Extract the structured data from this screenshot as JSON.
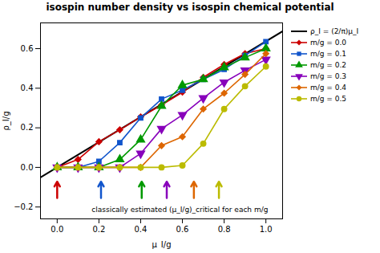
{
  "chart_data": {
    "type": "line",
    "title": "isospin number density vs isospin chemical potential",
    "x_label": "μ_I/g",
    "y_label": "ρ_I/g",
    "xlim": [
      -0.08,
      1.08
    ],
    "ylim": [
      -0.26,
      0.73
    ],
    "xticks": [
      {
        "value": 0.0,
        "label": "0.0"
      },
      0.2,
      0.4,
      0.6,
      0.8,
      {
        "value": 1.0,
        "label": "1.0"
      }
    ],
    "yticks": [
      {
        "value": -0.2,
        "label": "−0.2"
      },
      {
        "value": 0.0,
        "label": "0.0"
      },
      0.2,
      0.4,
      0.6
    ],
    "grid": false,
    "series": [
      {
        "name": "ρ_I = (2/π)μ_I",
        "type": "line",
        "color": "black",
        "x": [
          -0.08,
          1.08
        ],
        "values": [
          -0.050928,
          0.687528
        ]
      },
      {
        "name": "m/g = 0.0",
        "type": "line",
        "color": "#cc0000",
        "marker": "diamond",
        "x": [
          0.0,
          0.1,
          0.2,
          0.3,
          0.4,
          0.5,
          0.6,
          0.7,
          0.8,
          0.9,
          1.0
        ],
        "values": [
          0.0,
          0.04,
          0.13,
          0.19,
          0.255,
          0.315,
          0.38,
          0.455,
          0.52,
          0.575,
          0.6
        ],
        "yerr": [
          0.005,
          0.008,
          0.009,
          0.009,
          0.009,
          0.009,
          0.009,
          0.009,
          0.009,
          0.009,
          0.01
        ]
      },
      {
        "name": "m/g = 0.1",
        "type": "line",
        "color": "#1155cc",
        "marker": "square",
        "x": [
          0.0,
          0.1,
          0.2,
          0.3,
          0.4,
          0.5,
          0.6,
          0.7,
          0.8,
          0.9,
          1.0
        ],
        "values": [
          0.0,
          0.0,
          0.03,
          0.125,
          0.25,
          0.345,
          0.39,
          0.445,
          0.495,
          0.565,
          0.635
        ],
        "yerr": [
          0.005,
          0.005,
          0.007,
          0.009,
          0.009,
          0.009,
          0.009,
          0.009,
          0.009,
          0.009,
          0.01
        ]
      },
      {
        "name": "m/g = 0.2",
        "type": "line",
        "color": "#009900",
        "marker": "triangle-up",
        "x": [
          0.0,
          0.1,
          0.2,
          0.3,
          0.4,
          0.5,
          0.6,
          0.7,
          0.8,
          0.9,
          1.0
        ],
        "values": [
          0.0,
          0.0,
          0.0,
          0.04,
          0.14,
          0.31,
          0.415,
          0.445,
          0.505,
          0.555,
          0.6
        ],
        "yerr": [
          0.005,
          0.005,
          0.005,
          0.007,
          0.009,
          0.009,
          0.009,
          0.009,
          0.009,
          0.009,
          0.01
        ]
      },
      {
        "name": "m/g = 0.3",
        "type": "line",
        "color": "#8800bb",
        "marker": "triangle-down",
        "x": [
          0.0,
          0.1,
          0.2,
          0.3,
          0.4,
          0.5,
          0.6,
          0.7,
          0.8,
          0.9,
          1.0
        ],
        "values": [
          0.0,
          0.0,
          0.0,
          0.0,
          0.07,
          0.195,
          0.265,
          0.35,
          0.43,
          0.49,
          0.545
        ],
        "yerr": [
          0.005,
          0.005,
          0.005,
          0.005,
          0.009,
          0.009,
          0.011,
          0.011,
          0.011,
          0.011,
          0.013
        ]
      },
      {
        "name": "m/g = 0.4",
        "type": "line",
        "color": "#dd6600",
        "marker": "diamond",
        "x": [
          0.0,
          0.1,
          0.2,
          0.3,
          0.4,
          0.5,
          0.6,
          0.7,
          0.8,
          0.9,
          1.0
        ],
        "values": [
          0.0,
          0.0,
          0.0,
          0.0,
          0.0,
          0.11,
          0.155,
          0.295,
          0.375,
          0.47,
          0.575
        ],
        "yerr": [
          0.005,
          0.005,
          0.005,
          0.005,
          0.005,
          0.009,
          0.009,
          0.011,
          0.011,
          0.011,
          0.013
        ]
      },
      {
        "name": "m/g = 0.5",
        "type": "line",
        "color": "#bbbb00",
        "marker": "circle",
        "x": [
          0.0,
          0.1,
          0.2,
          0.3,
          0.4,
          0.5,
          0.6,
          0.7,
          0.8,
          0.9,
          1.0
        ],
        "values": [
          0.0,
          0.0,
          0.0,
          0.0,
          0.0,
          0.0,
          0.01,
          0.12,
          0.295,
          0.41,
          0.51
        ],
        "yerr": [
          0.005,
          0.005,
          0.005,
          0.005,
          0.005,
          0.005,
          0.005,
          0.009,
          0.011,
          0.011,
          0.013
        ]
      }
    ],
    "arrows": [
      {
        "x": 0.0,
        "y_start": -0.155,
        "y_end": -0.072,
        "color": "#cc0000"
      },
      {
        "x": 0.21,
        "y_start": -0.155,
        "y_end": -0.072,
        "color": "#1155cc"
      },
      {
        "x": 0.405,
        "y_start": -0.155,
        "y_end": -0.072,
        "color": "#009900"
      },
      {
        "x": 0.525,
        "y_start": -0.155,
        "y_end": -0.072,
        "color": "#8800bb"
      },
      {
        "x": 0.655,
        "y_start": -0.155,
        "y_end": -0.072,
        "color": "#dd6600"
      },
      {
        "x": 0.775,
        "y_start": -0.155,
        "y_end": -0.072,
        "color": "#bbbb00"
      }
    ],
    "annotations": [
      {
        "text": "classically estimated (μ_I/g)_critical for each m/g",
        "x": 0.165,
        "y": -0.215
      }
    ]
  }
}
